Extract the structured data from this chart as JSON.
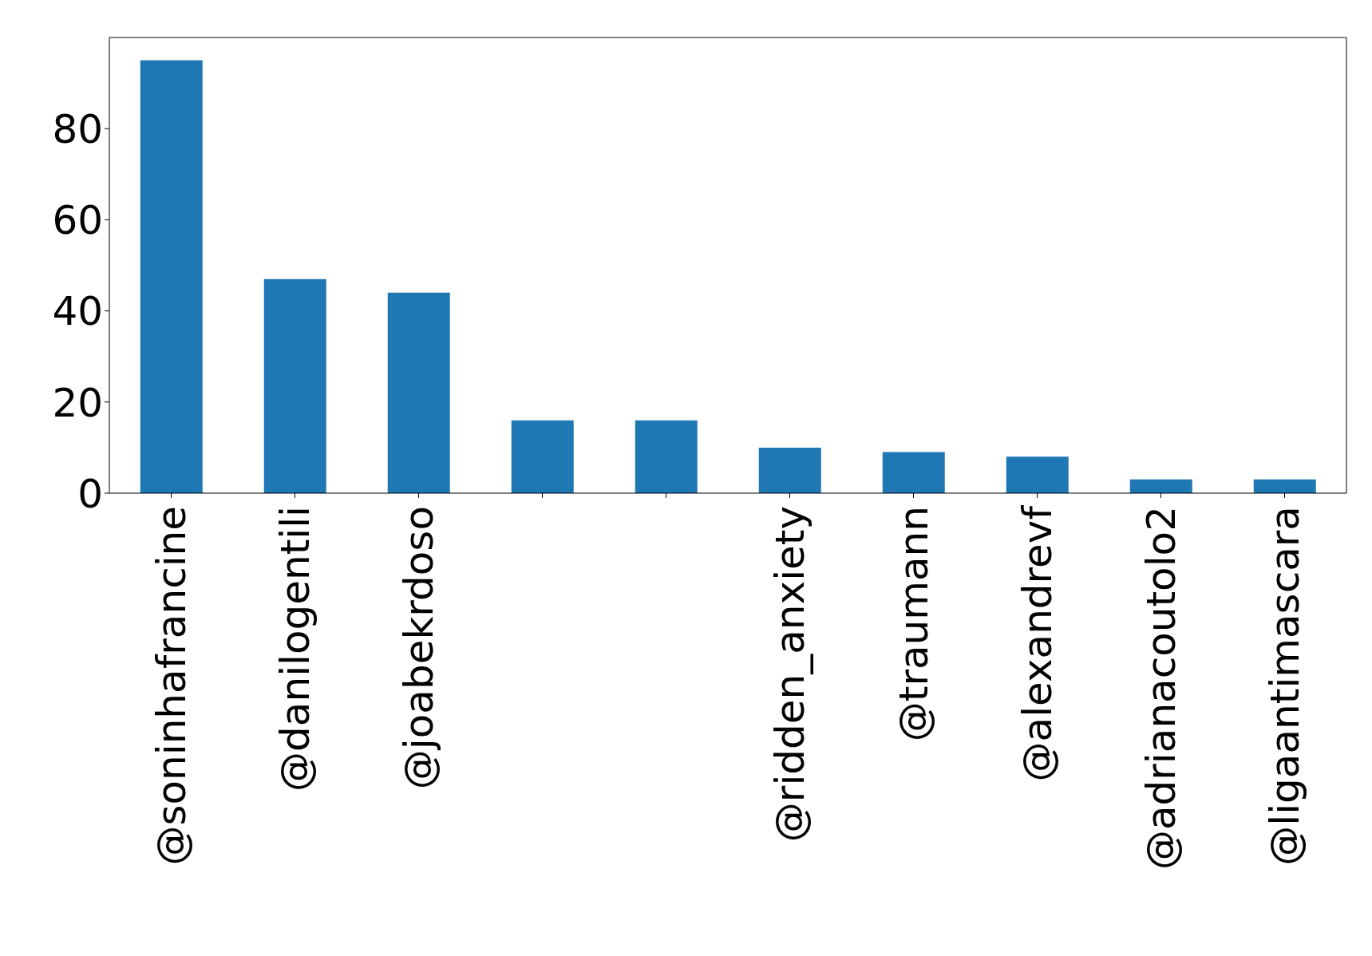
{
  "chart_data": {
    "type": "bar",
    "categories": [
      "@soninhafrancine",
      "@danilogentili",
      "@joabekrdoso",
      null,
      null,
      "@ridden_anxiety",
      "@traumann",
      "@alexandrevf",
      "@adrianacoutolo2",
      "@ligaantimascara"
    ],
    "values": [
      95,
      47,
      44,
      16,
      16,
      10,
      9,
      8,
      3,
      3
    ],
    "color": "#1f77b4",
    "ylim": [
      0,
      100
    ],
    "yticks": [
      0,
      20,
      40,
      60,
      80
    ],
    "grid": false
  }
}
